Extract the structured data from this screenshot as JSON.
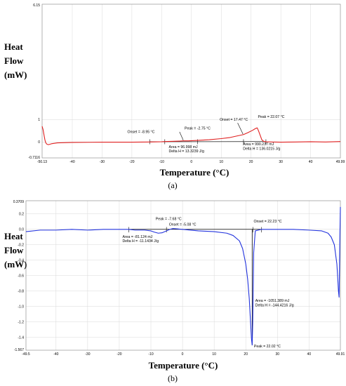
{
  "chart_data": [
    {
      "type": "line",
      "panel_label": "(a)",
      "ylabel_lines": [
        "Heat",
        "Flow",
        "(mW)"
      ],
      "xlabel": "Temperature (°C)",
      "xlim": [
        -50.13,
        49.99
      ],
      "ylim": [
        -0.7116,
        6.15
      ],
      "x_ticks": [
        -40,
        -30,
        -20,
        -10,
        0,
        10,
        20,
        30,
        40
      ],
      "x_tick_labels": [
        "-40",
        "-30",
        "-20",
        "-10",
        "0",
        "10",
        "20",
        "30",
        "40"
      ],
      "x_end_labels": [
        "-50.13",
        "49.99"
      ],
      "y_ticks": [
        0,
        1
      ],
      "y_tick_labels": [
        "0",
        "1"
      ],
      "y_end_labels": [
        "-0.7116",
        "6.15"
      ],
      "grid": true,
      "series": [
        {
          "color": "#e02020",
          "x": [
            -50.13,
            -49.8,
            -49.5,
            -49.2,
            -48.9,
            -48.5,
            -48,
            -47,
            -45,
            -40,
            -30,
            -20,
            -14,
            -10,
            -8.95,
            -6,
            -4,
            -2.75,
            -1,
            2,
            6,
            10,
            13,
            15,
            17.47,
            19,
            20.5,
            21.5,
            22.07,
            22.5,
            23.2,
            23.6,
            24.2,
            25,
            27,
            30,
            35,
            40,
            45,
            49.99
          ],
          "y": [
            0.7,
            0.55,
            0.32,
            0.1,
            -0.04,
            -0.1,
            -0.12,
            -0.08,
            -0.04,
            -0.02,
            -0.01,
            -0.01,
            0.0,
            0.01,
            0.02,
            0.03,
            0.04,
            0.05,
            0.05,
            0.07,
            0.1,
            0.15,
            0.2,
            0.26,
            0.33,
            0.42,
            0.52,
            0.6,
            0.63,
            0.5,
            0.25,
            0.1,
            0.03,
            0.01,
            0.0,
            -0.01,
            0.0,
            0.01,
            0.0,
            0.02
          ]
        }
      ],
      "annotations": [
        {
          "lines": [
            "Onset = -8.95 °C"
          ],
          "x": -21.5,
          "y": 0.4
        },
        {
          "lines": [
            "Peak = -2.75 °C"
          ],
          "x": -2.3,
          "y": 0.55
        },
        {
          "lines": [
            "Area = 96.998 mJ",
            "Delta H = 13.3239 J/g"
          ],
          "x": -7.6,
          "y": -0.27
        },
        {
          "lines": [
            "Onset = 17.47 °C"
          ],
          "x": 9.5,
          "y": 0.95
        },
        {
          "lines": [
            "Peak = 22.07 °C"
          ],
          "x": 22.3,
          "y": 1.08
        },
        {
          "lines": [
            "Area = 990.237 mJ",
            "Delta H = 136.0215 J/g"
          ],
          "x": 17.3,
          "y": -0.15
        }
      ]
    },
    {
      "type": "line",
      "panel_label": "(b)",
      "ylabel_lines": [
        "Heat",
        "Flow",
        "(mW)"
      ],
      "xlabel": "Temperature (°C)",
      "xlim": [
        -49.5,
        49.91
      ],
      "ylim": [
        -1.567,
        0.3709
      ],
      "x_ticks": [
        -40,
        -30,
        -20,
        -10,
        0,
        10,
        20,
        30,
        40
      ],
      "x_tick_labels": [
        "-40",
        "-30",
        "-20",
        "-10",
        "0",
        "10",
        "20",
        "30",
        "40"
      ],
      "x_end_labels": [
        "-49.5",
        "49.91"
      ],
      "y_ticks": [
        0.2,
        0.0,
        -0.2,
        -0.4,
        -0.6,
        -0.8,
        -1.0,
        -1.2,
        -1.4
      ],
      "y_tick_labels": [
        "0.2",
        "0.0",
        "-0.2",
        "-0.4",
        "-0.6",
        "-0.8",
        "-1.0",
        "-1.2",
        "-1.4"
      ],
      "y_end_labels": [
        "0.3709",
        "-1.567"
      ],
      "grid": true,
      "series": [
        {
          "color": "#2233dd",
          "x": [
            -49.5,
            -45,
            -40,
            -35,
            -30,
            -25,
            -20,
            -17,
            -15,
            -12,
            -10,
            -9,
            -7.68,
            -6.5,
            -5.08,
            -4,
            -3,
            0,
            5,
            10,
            14,
            16,
            18,
            19,
            20,
            20.6,
            21.1,
            21.5,
            21.8,
            22.02,
            22.2,
            22.5,
            23,
            25,
            30,
            35,
            40,
            44,
            46,
            47,
            48,
            48.8,
            49.1,
            49.3,
            49.5,
            49.6,
            49.75,
            49.91
          ],
          "y": [
            -0.03,
            -0.01,
            -0.01,
            0.0,
            -0.01,
            0.0,
            0.0,
            0.0,
            -0.01,
            -0.01,
            -0.02,
            -0.035,
            -0.05,
            -0.045,
            -0.02,
            0.0,
            0.01,
            0.0,
            -0.02,
            -0.03,
            -0.05,
            -0.08,
            -0.15,
            -0.25,
            -0.45,
            -0.65,
            -0.9,
            -1.2,
            -1.42,
            -1.5,
            -1.2,
            -0.3,
            -0.02,
            0.0,
            0.0,
            0.0,
            -0.01,
            -0.02,
            -0.05,
            -0.1,
            -0.2,
            -0.45,
            -0.65,
            -0.8,
            -0.88,
            -0.6,
            -0.1,
            0.29
          ]
        }
      ],
      "annotations": [
        {
          "lines": [
            "Peak = -7.68 °C"
          ],
          "x": -8.5,
          "y": 0.12
        },
        {
          "lines": [
            "Onset = -5.08 °C"
          ],
          "x": -4.3,
          "y": 0.05
        },
        {
          "lines": [
            "Area = -81.124 mJ",
            "Delta H = -11.1434 J/g"
          ],
          "x": -19,
          "y": -0.11
        },
        {
          "lines": [
            "Onset = 22.23 °C"
          ],
          "x": 22.5,
          "y": 0.09
        },
        {
          "lines": [
            "Area = -1051.389 mJ",
            "Delta H = -144.4216 J/g"
          ],
          "x": 23,
          "y": -0.94
        },
        {
          "lines": [
            "Peak = 22.02 °C"
          ],
          "x": 22.6,
          "y": -1.53
        }
      ]
    }
  ]
}
